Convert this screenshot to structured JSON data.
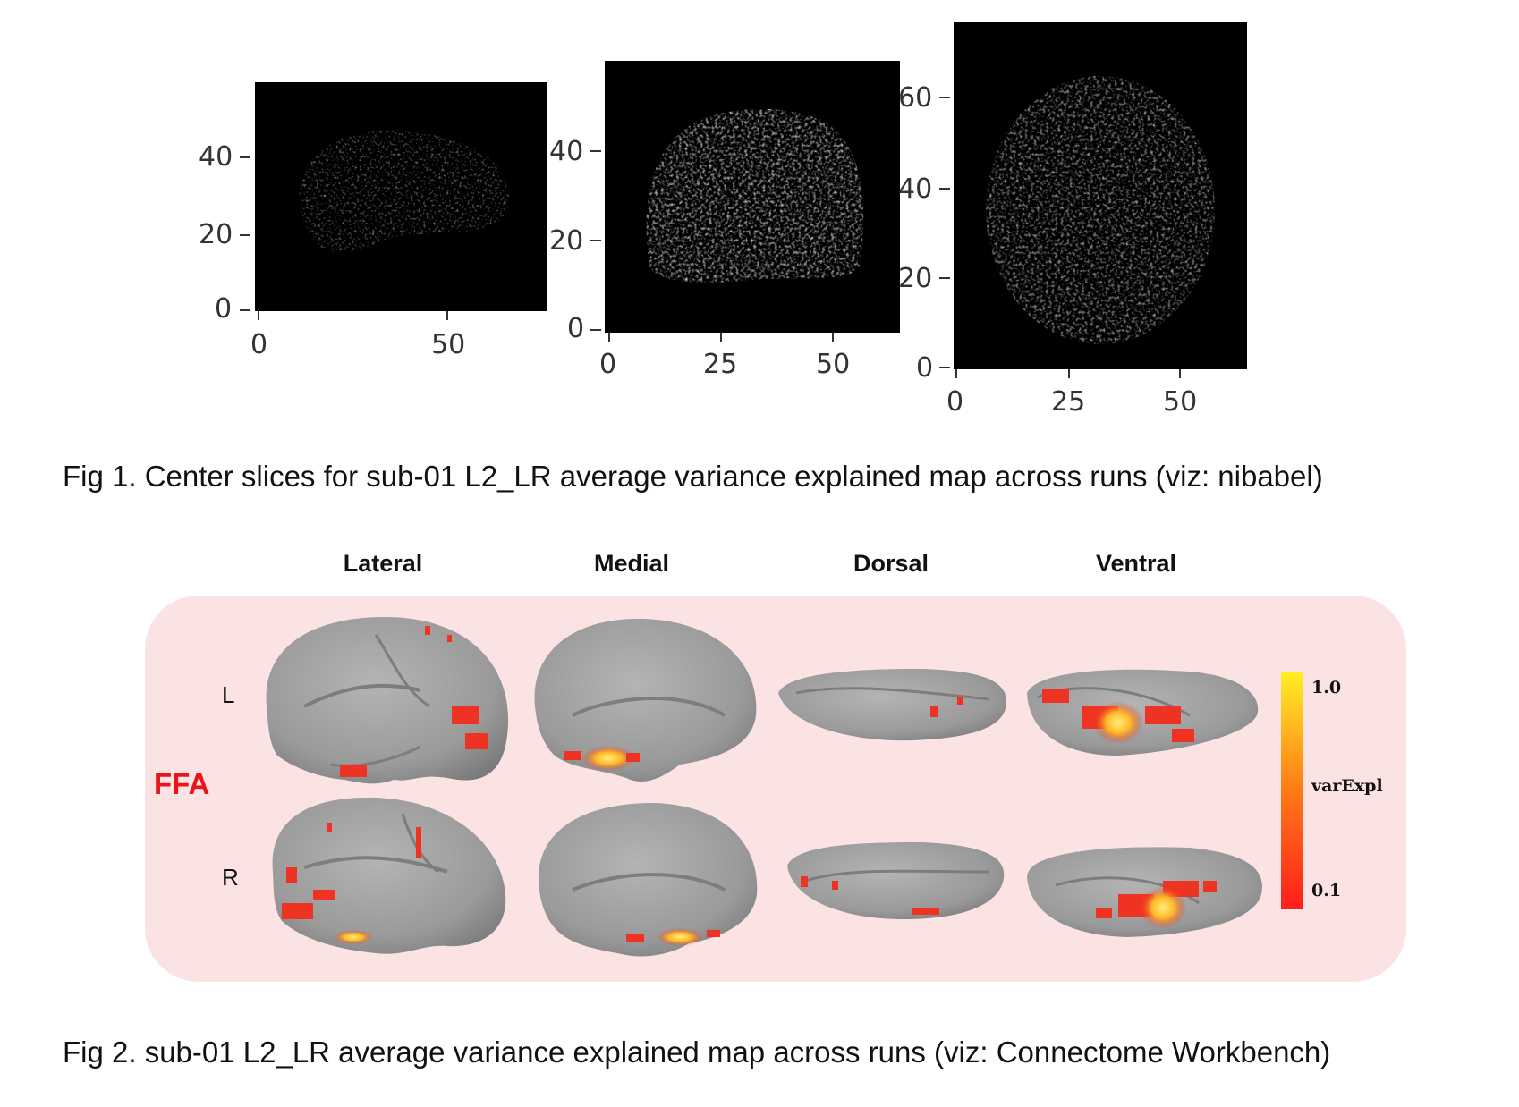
{
  "figure1": {
    "plots": [
      {
        "yticks": [
          "40",
          "20",
          "0"
        ],
        "xticks": [
          "0",
          "50"
        ]
      },
      {
        "yticks": [
          "40",
          "20",
          "0"
        ],
        "xticks": [
          "0",
          "25",
          "50"
        ]
      },
      {
        "yticks": [
          "60",
          "40",
          "20",
          "0"
        ],
        "xticks": [
          "0",
          "25",
          "50"
        ]
      }
    ],
    "caption": "Fig 1. Center slices for sub-01 L2_LR average variance explained map across runs (viz: nibabel)"
  },
  "figure2": {
    "views": [
      "Lateral",
      "Medial",
      "Dorsal",
      "Ventral"
    ],
    "hemispheres": [
      "L",
      "R"
    ],
    "roi_label": "FFA",
    "colorbar": {
      "max_label": "1.0",
      "title": "varExpl",
      "min_label": "0.1"
    },
    "colors": {
      "panel_bg": "#fbe3e4",
      "roi": "#e8151b",
      "brain": "#9c9c9c",
      "activation": "#ee3322",
      "peak": "#ffd21a"
    },
    "caption": "Fig 2. sub-01 L2_LR average variance explained map across runs (viz: Connectome Workbench)"
  }
}
